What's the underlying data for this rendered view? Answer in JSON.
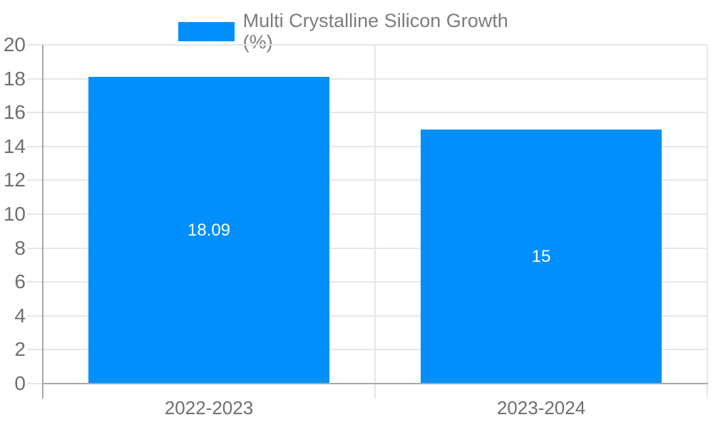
{
  "chart_data": {
    "type": "bar",
    "title": "Multi Crystalline Silicon Growth (%)",
    "categories": [
      "2022-2023",
      "2023-2024"
    ],
    "values": [
      18.09,
      15
    ],
    "data_labels": [
      "18.09",
      "15"
    ],
    "ytick_labels": [
      "0",
      "2",
      "4",
      "6",
      "8",
      "10",
      "12",
      "14",
      "16",
      "18",
      "20"
    ],
    "yticks": [
      0,
      2,
      4,
      6,
      8,
      10,
      12,
      14,
      16,
      18,
      20
    ],
    "ylim": [
      0,
      20
    ],
    "grid": true,
    "legend_position": "top",
    "colors": {
      "bar": "#008FFB",
      "grid": "#e6e6e6",
      "axis": "#a8a8a8",
      "axis_label": "#6f6f6f",
      "data_label": "#ffffff",
      "legend_text": "#7c7c7c",
      "background": "#ffffff"
    }
  }
}
